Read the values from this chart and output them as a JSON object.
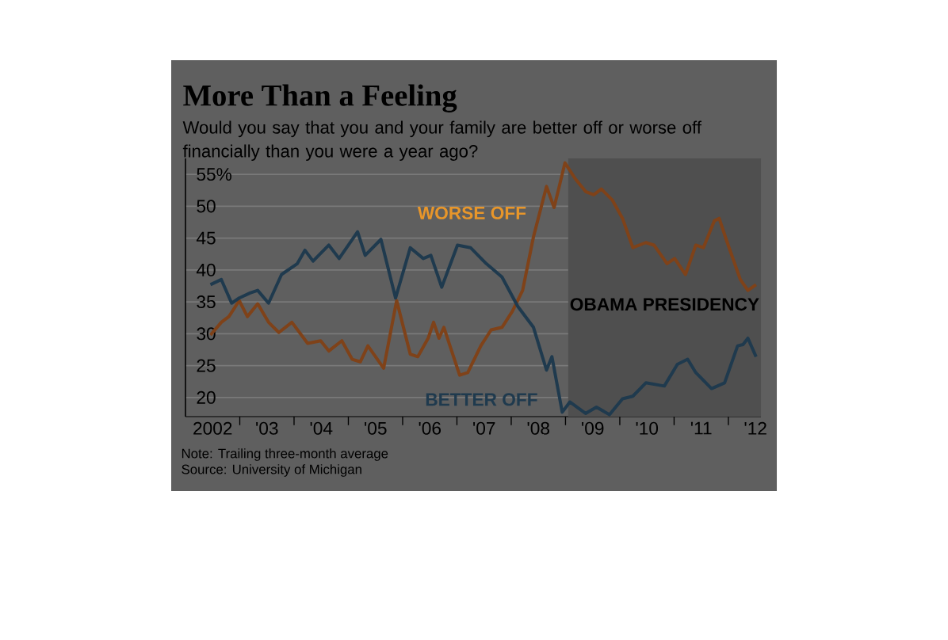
{
  "chart_data": {
    "type": "line",
    "title": "More Than a Feeling",
    "subtitle": "Would you say that you and your family are better off or worse off financially than you were a year ago?",
    "x": [
      2001.96,
      2002.16,
      2002.3,
      2002.49,
      2002.64,
      2002.83,
      2003.03,
      2003.22,
      2003.46,
      2003.75,
      2003.99,
      2004.14,
      2004.38,
      2004.57,
      2004.72,
      2004.86,
      2005.15,
      2005.39,
      2005.64,
      2005.78,
      2005.97,
      2006.07,
      2006.17,
      2006.26,
      2006.55,
      2006.7,
      2006.94,
      2007.13,
      2007.33,
      2007.52,
      2007.71,
      2007.91,
      2008.15,
      2008.29,
      2008.49,
      2008.68,
      2008.87,
      2009.02,
      2009.16,
      2009.36,
      2009.55,
      2009.74,
      2009.98,
      2010.13,
      2010.37,
      2010.51,
      2010.71,
      2010.9,
      2011.04,
      2011.24,
      2011.33,
      2011.48,
      2011.72,
      2011.86,
      2012.01
    ],
    "series": [
      {
        "name": "WORSE OFF",
        "color": "#7f4219",
        "values": [
          29.8,
          31.8,
          32.7,
          35.2,
          32.7,
          34.7,
          31.8,
          30.2,
          31.8,
          28.5,
          28.9,
          27.3,
          28.9,
          26,
          25.6,
          28.1,
          24.6,
          35.2,
          26.8,
          26.4,
          29.3,
          31.8,
          29.3,
          31,
          23.5,
          23.9,
          28.1,
          30.6,
          31,
          33.5,
          36.8,
          45.2,
          53.1,
          49.8,
          56.8,
          54.3,
          52.3,
          51.8,
          52.7,
          51,
          48.1,
          43.5,
          44.3,
          43.9,
          41,
          41.8,
          39.3,
          43.9,
          43.5,
          47.7,
          48.1,
          44.3,
          38.5,
          36.8,
          37.7
        ]
      },
      {
        "name": "BETTER OFF",
        "color": "#1f3a4e",
        "x": [
          2001.96,
          2002.16,
          2002.35,
          2002.49,
          2002.69,
          2002.83,
          2003.03,
          2003.27,
          2003.56,
          2003.7,
          2003.85,
          2004.14,
          2004.33,
          2004.67,
          2004.81,
          2005.1,
          2005.37,
          2005.64,
          2005.88,
          2006.02,
          2006.22,
          2006.51,
          2006.75,
          2007.04,
          2007.33,
          2007.62,
          2007.91,
          2008.15,
          2008.25,
          2008.44,
          2008.58,
          2008.87,
          2009.07,
          2009.31,
          2009.55,
          2009.74,
          2009.98,
          2010.32,
          2010.56,
          2010.75,
          2010.9,
          2011.19,
          2011.43,
          2011.67,
          2011.77,
          2011.86,
          2012.01
        ],
        "values": [
          37.7,
          38.5,
          34.8,
          35.6,
          36.4,
          36.8,
          34.8,
          39.3,
          41,
          43.1,
          41.4,
          43.9,
          41.8,
          46,
          42.3,
          44.8,
          35.6,
          43.5,
          41.8,
          42.3,
          37.3,
          43.9,
          43.5,
          41,
          38.9,
          34.3,
          31,
          24.3,
          26.4,
          17.7,
          19.3,
          17.5,
          18.5,
          17.3,
          19.8,
          20.2,
          22.3,
          21.8,
          25.2,
          26,
          23.9,
          21.4,
          22.3,
          28.1,
          28.3,
          29.3,
          26.4
        ]
      }
    ],
    "xlim": [
      2001.5,
      2012.1
    ],
    "xticks": [
      2002,
      {
        "value": 2003,
        "label": "'03"
      },
      {
        "value": 2004,
        "label": "'04"
      },
      {
        "value": 2005,
        "label": "'05"
      },
      {
        "value": 2006,
        "label": "'06"
      },
      {
        "value": 2007,
        "label": "'07"
      },
      {
        "value": 2008,
        "label": "'08"
      },
      {
        "value": 2009,
        "label": "'09"
      },
      {
        "value": 2010,
        "label": "'10"
      },
      {
        "value": 2011,
        "label": "'11"
      },
      {
        "value": 2012,
        "label": "'12"
      },
      {
        "value": 2002.5,
        "label": null
      },
      {
        "value": 2003.5,
        "label": null
      },
      {
        "value": 2004.5,
        "label": null
      },
      {
        "value": 2005.5,
        "label": null
      },
      {
        "value": 2006.5,
        "label": null
      },
      {
        "value": 2007.5,
        "label": null
      },
      {
        "value": 2008.5,
        "label": null
      },
      {
        "value": 2009.5,
        "label": null
      },
      {
        "value": 2010.5,
        "label": null
      },
      {
        "value": 2011.5,
        "label": null
      }
    ],
    "ylim": [
      17,
      57.5
    ],
    "yticks": [
      20,
      25,
      30,
      35,
      40,
      45,
      50,
      {
        "value": 55,
        "label": "55%"
      }
    ],
    "grid": "y",
    "line_style": "solid",
    "bands": [
      {
        "axis": "x",
        "from": 2008.55,
        "to": 2012.1,
        "label": "OBAMA PRESIDENCY",
        "color": "#4f4f4f"
      }
    ],
    "annotations": [
      "Note: Trailing three-month average",
      "Source: University of Michigan"
    ]
  }
}
